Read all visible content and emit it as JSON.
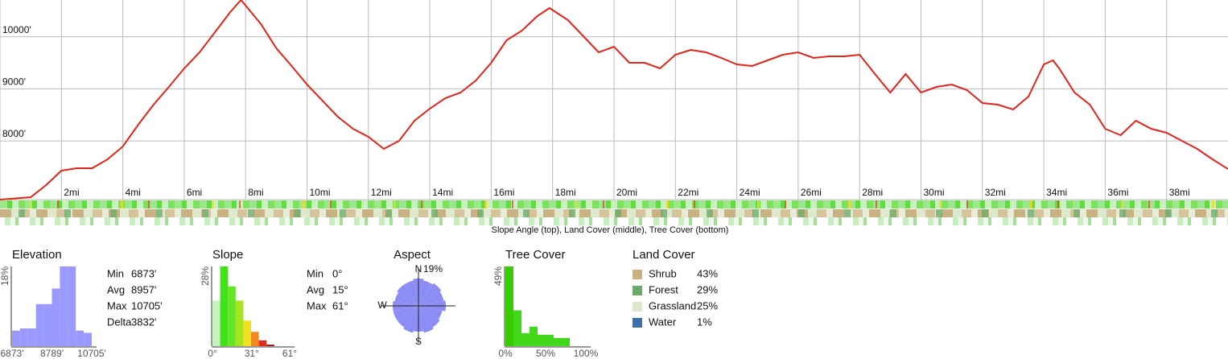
{
  "caption": "Slope Angle (top), Land Cover (middle), Tree Cover (bottom)",
  "chart_data": [
    {
      "type": "line",
      "color": "#e0251c",
      "grid": true,
      "xlim": [
        0,
        40
      ],
      "ylim": [
        6873,
        10705
      ],
      "xticks": [
        {
          "value": 2,
          "label": "2mi"
        },
        {
          "value": 4,
          "label": "4mi"
        },
        {
          "value": 6,
          "label": "6mi"
        },
        {
          "value": 8,
          "label": "8mi"
        },
        {
          "value": 10,
          "label": "10mi"
        },
        {
          "value": 12,
          "label": "12mi"
        },
        {
          "value": 14,
          "label": "14mi"
        },
        {
          "value": 16,
          "label": "16mi"
        },
        {
          "value": 18,
          "label": "18mi"
        },
        {
          "value": 20,
          "label": "20mi"
        },
        {
          "value": 22,
          "label": "22mi"
        },
        {
          "value": 24,
          "label": "24mi"
        },
        {
          "value": 26,
          "label": "26mi"
        },
        {
          "value": 28,
          "label": "28mi"
        },
        {
          "value": 30,
          "label": "30mi"
        },
        {
          "value": 32,
          "label": "32mi"
        },
        {
          "value": 34,
          "label": "34mi"
        },
        {
          "value": 36,
          "label": "36mi"
        },
        {
          "value": 38,
          "label": "38mi"
        }
      ],
      "yticks": [
        {
          "value": 8000,
          "label": "8000'"
        },
        {
          "value": 9000,
          "label": "9000'"
        },
        {
          "value": 10000,
          "label": "10000'"
        }
      ],
      "x": [
        0,
        1,
        1.5,
        2,
        2.5,
        3,
        3.5,
        4,
        4.5,
        5,
        5.5,
        6,
        6.5,
        7,
        7.5,
        7.85,
        8.5,
        9,
        9.5,
        10,
        10.5,
        11,
        11.5,
        12,
        12.5,
        13,
        13.5,
        14,
        14.5,
        15,
        15.5,
        16,
        16.5,
        17,
        17.5,
        17.9,
        18.5,
        19,
        19.5,
        20,
        20.5,
        21,
        21.5,
        22,
        22.5,
        23,
        23.5,
        24,
        24.5,
        25,
        25.5,
        26,
        26.5,
        27,
        27.5,
        28,
        28.5,
        29,
        29.5,
        30,
        30.5,
        31,
        31.5,
        32,
        32.5,
        33,
        33.5,
        34,
        34.3,
        34.5,
        35,
        35.5,
        36,
        36.5,
        37,
        37.5,
        38,
        38.5,
        39,
        39.5,
        40
      ],
      "values": [
        6873,
        6919,
        7151,
        7429,
        7475,
        7475,
        7646,
        7893,
        8310,
        8696,
        9036,
        9391,
        9700,
        10087,
        10473,
        10705,
        10241,
        9778,
        9438,
        9082,
        8773,
        8464,
        8233,
        8078,
        7846,
        8001,
        8387,
        8619,
        8820,
        8928,
        9160,
        9500,
        9932,
        10117,
        10396,
        10550,
        10319,
        10009,
        9700,
        9808,
        9500,
        9500,
        9391,
        9654,
        9747,
        9700,
        9592,
        9469,
        9438,
        9546,
        9654,
        9700,
        9592,
        9623,
        9623,
        9654,
        9283,
        8928,
        9283,
        8928,
        9036,
        9082,
        8974,
        8727,
        8696,
        8603,
        8851,
        9469,
        9546,
        9391,
        8928,
        8696,
        8233,
        8109,
        8387,
        8233,
        8156,
        8001,
        7846,
        7646,
        7460
      ]
    },
    {
      "type": "histogram",
      "title": "Elevation",
      "color": "#9999ff",
      "bins": [
        6873,
        7256.2,
        7639.4,
        8022.6,
        8405.8,
        8789,
        9172.2,
        9555.4,
        9938.6,
        10321.8,
        10705
      ],
      "values": [
        3.5,
        4,
        4,
        9.5,
        9.5,
        13,
        18,
        18,
        3.5,
        3
      ],
      "xlim": [
        6873,
        10705
      ],
      "xticks": [
        {
          "value": 6873,
          "label": "6873'"
        },
        {
          "value": 8789,
          "label": "8789'"
        },
        {
          "value": 10705,
          "label": "10705'"
        }
      ],
      "ylim": [
        0,
        18
      ],
      "yticks": [
        {
          "value": 18,
          "label": "18%"
        }
      ],
      "stats": [
        {
          "label": "Min",
          "value": "6873'"
        },
        {
          "label": "Avg",
          "value": "8957'"
        },
        {
          "label": "Max",
          "value": "10705'"
        },
        {
          "label": "Delta",
          "value": "3832'"
        }
      ]
    },
    {
      "type": "histogram",
      "title": "Slope",
      "colors": [
        "#c6f2bd",
        "#44e01c",
        "#66e426",
        "#a6e41c",
        "#f0e020",
        "#f08a20",
        "#e02a20",
        "#a00000",
        "#a00000",
        "#a00000"
      ],
      "bins": [
        0,
        6.1,
        12.2,
        18.3,
        24.4,
        30.5,
        36.6,
        42.7,
        48.8,
        54.9,
        61
      ],
      "values": [
        16,
        28,
        21,
        16,
        9,
        5,
        2,
        0.5,
        0,
        0
      ],
      "xlim": [
        0,
        61
      ],
      "xticks": [
        {
          "value": 0,
          "label": "0°"
        },
        {
          "value": 31,
          "label": "31°"
        },
        {
          "value": 61,
          "label": "61°"
        }
      ],
      "ylim": [
        0,
        28
      ],
      "yticks": [
        {
          "value": 28,
          "label": "28%"
        }
      ],
      "stats": [
        {
          "label": "Min",
          "value": "0°"
        },
        {
          "label": "Avg",
          "value": "15°"
        },
        {
          "label": "Max",
          "value": "61°"
        }
      ]
    },
    {
      "type": "polar",
      "title": "Aspect",
      "color": "#8c8cf5",
      "categories": [
        "N",
        null,
        null,
        null,
        null,
        null,
        null,
        null,
        "S",
        null,
        null,
        null,
        "W",
        null,
        null,
        null
      ],
      "values": [
        17,
        16,
        17,
        16,
        17,
        15,
        16,
        17,
        16,
        17,
        16,
        16,
        16,
        15,
        16,
        16
      ],
      "rlim": [
        0,
        19
      ],
      "rticks": [
        {
          "value": 19,
          "label": "19%"
        }
      ]
    },
    {
      "type": "histogram",
      "title": "Tree Cover",
      "colors": [
        "#38cc00",
        "#44d81c",
        "#44d81c",
        "#44d81c",
        "#44d81c",
        "#44d81c",
        "#44d81c",
        "#44d81c",
        "#44d81c",
        "#44d81c"
      ],
      "bins": [
        0,
        10,
        20,
        30,
        40,
        50,
        60,
        70,
        80,
        90,
        100
      ],
      "values": [
        49,
        22,
        8,
        12,
        7,
        7,
        5,
        5,
        0,
        0
      ],
      "xlim": [
        0,
        100
      ],
      "xticks": [
        {
          "value": 0,
          "label": "0%"
        },
        {
          "value": 50,
          "label": "50%"
        },
        {
          "value": 100,
          "label": "100%"
        }
      ],
      "ylim": [
        0,
        49
      ],
      "yticks": [
        {
          "value": 49,
          "label": "49%"
        }
      ]
    },
    {
      "type": "key",
      "title": "Land Cover",
      "categories": [
        "Shrub",
        "Forest",
        "Grassland",
        "Water"
      ],
      "values": [
        43,
        29,
        25,
        1
      ],
      "value_labels": [
        "43%",
        "29%",
        "25%",
        "1%"
      ],
      "colors": [
        "#c8b283",
        "#6aaa6a",
        "#dde8cc",
        "#3f6fa8"
      ]
    }
  ]
}
